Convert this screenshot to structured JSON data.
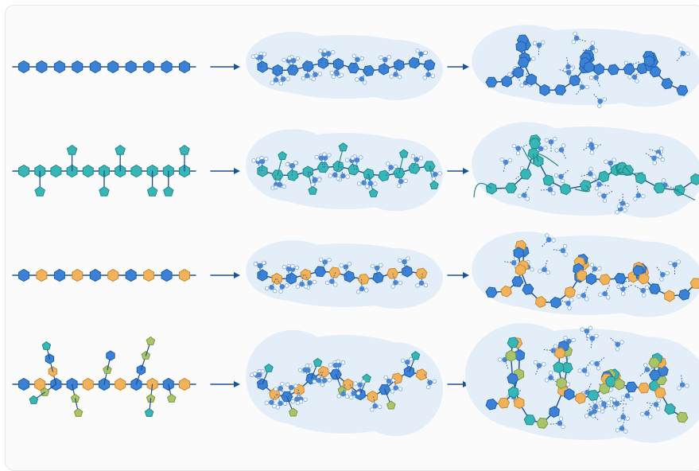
{
  "diagram": {
    "rows": [
      {
        "id": "linear-homopolymer",
        "monomer_types": [
          "blue"
        ],
        "branched": false,
        "final_state": "coiled"
      },
      {
        "id": "teal-branched",
        "monomer_types": [
          "teal"
        ],
        "branched": true,
        "final_state": "network"
      },
      {
        "id": "alternating-copolymer",
        "monomer_types": [
          "blue",
          "orange"
        ],
        "branched": false,
        "final_state": "coiled"
      },
      {
        "id": "mixed-branched",
        "monomer_types": [
          "blue",
          "orange",
          "teal",
          "green"
        ],
        "branched": true,
        "final_state": "dense-network"
      }
    ],
    "stages": [
      "isolated-chain",
      "hydrated-chain",
      "collapsed-structure"
    ],
    "arrow_icon": "right-arrow-icon",
    "monomer_icon": "hexagon-icon",
    "branch_icon": "pentagon-icon",
    "water_icon": "water-molecule-icon",
    "colors": {
      "blue": "#3b82d6",
      "blue_stroke": "#1e5fae",
      "teal": "#38b6b6",
      "teal_stroke": "#1f8a8d",
      "orange": "#f1b25a",
      "orange_stroke": "#c98a2d",
      "green": "#a9c46a",
      "green_stroke": "#7c9a3e",
      "backbone": "#1f4f8f",
      "arrow": "#1d4f9c",
      "hydration_cloud": "#e3eef9",
      "water_dot": "#4a86d4",
      "water_line": "#2b5fae"
    }
  }
}
